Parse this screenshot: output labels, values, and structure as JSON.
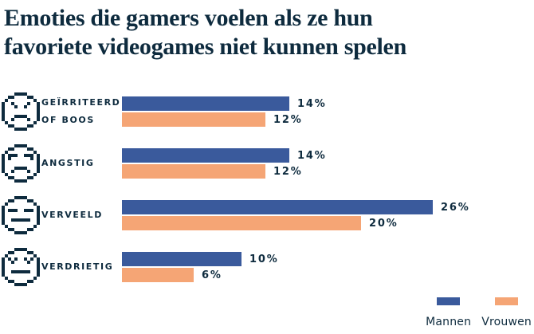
{
  "title": {
    "lines": [
      "Emoties die gamers voelen als ze hun",
      "favoriete videogames niet kunnen spelen"
    ],
    "full": "Emoties die gamers voelen als ze hun favoriete videogames niet kunnen spelen"
  },
  "colors": {
    "navy": "#0e2b3e",
    "men_blue": "#3a5a9c",
    "women_orange": "#f5a575",
    "background": "#ffffff"
  },
  "chart_data": {
    "type": "bar",
    "orientation": "horizontal",
    "title": "Emoties die gamers voelen als ze hun favoriete videogames niet kunnen spelen",
    "categories": [
      "Geïrriteerd of boos",
      "Angstig",
      "Verveeld",
      "Verdrietig"
    ],
    "series": [
      {
        "name": "Mannen",
        "color": "#3a5a9c",
        "values": [
          14,
          14,
          26,
          10
        ]
      },
      {
        "name": "Vrouwen",
        "color": "#f5a575",
        "values": [
          12,
          12,
          20,
          6
        ]
      }
    ],
    "unit": "%",
    "xlim": [
      0,
      30
    ],
    "grid": false,
    "value_labels": true,
    "legend_position": "bottom-right"
  },
  "rows": [
    {
      "icon": "angry-face-icon",
      "label_lines": [
        "GEÏRRITEERD",
        "OF BOOS"
      ],
      "men_label": "14%",
      "women_label": "12%",
      "men_value": 14,
      "women_value": 12
    },
    {
      "icon": "anxious-face-icon",
      "label_lines": [
        "ANGSTIG"
      ],
      "men_label": "14%",
      "women_label": "12%",
      "men_value": 14,
      "women_value": 12
    },
    {
      "icon": "bored-face-icon",
      "label_lines": [
        "VERVEELD"
      ],
      "men_label": "26%",
      "women_label": "20%",
      "men_value": 26,
      "women_value": 20
    },
    {
      "icon": "sad-face-icon",
      "label_lines": [
        "VERDRIETIG"
      ],
      "men_label": "10%",
      "women_label": "6%",
      "men_value": 10,
      "women_value": 6
    }
  ],
  "legend": {
    "items": [
      {
        "label": "Mannen",
        "color": "#3a5a9c"
      },
      {
        "label": "Vrouwen",
        "color": "#f5a575"
      }
    ]
  }
}
